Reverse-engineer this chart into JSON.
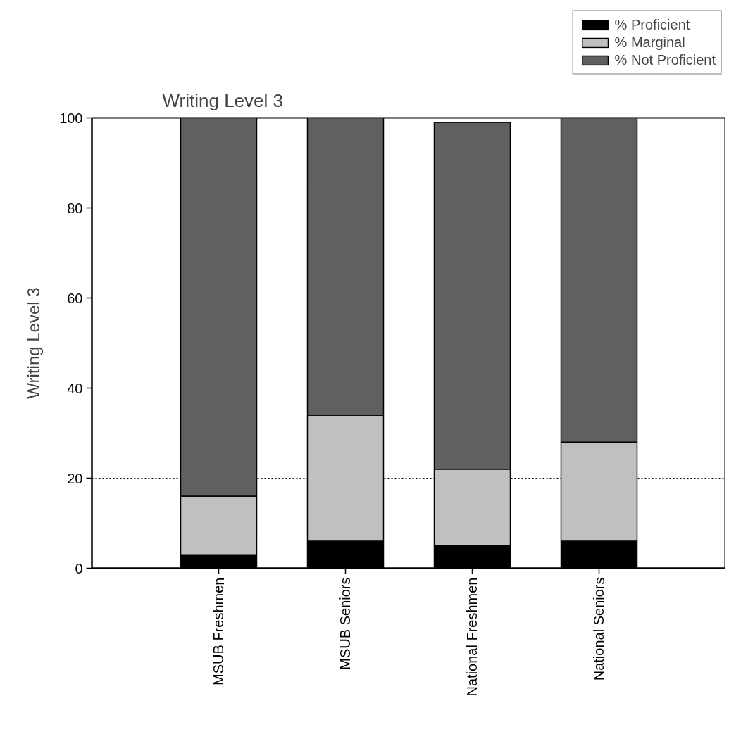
{
  "chart_data": {
    "type": "bar",
    "stacked": true,
    "title": "Writing Level 3",
    "ylabel": "Writing Level 3",
    "categories": [
      "MSUB Freshmen",
      "MSUB Seniors",
      "National Freshmen",
      "National Seniors"
    ],
    "series": [
      {
        "name": "% Proficient",
        "color": "#000000",
        "values": [
          3,
          6,
          5,
          6
        ]
      },
      {
        "name": "% Marginal",
        "color": "#c0c0c0",
        "values": [
          13,
          28,
          17,
          22
        ]
      },
      {
        "name": "% Not Proficient",
        "color": "#606060",
        "values": [
          84,
          66,
          77,
          72
        ]
      }
    ],
    "ylim": [
      0,
      100
    ],
    "yticks": [
      0,
      20,
      40,
      60,
      80,
      100
    ],
    "grid": "y",
    "legend": "top right"
  }
}
